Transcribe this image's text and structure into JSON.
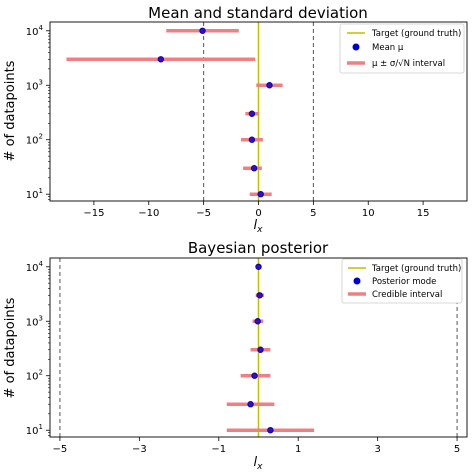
{
  "chart_data": [
    {
      "type": "scatter",
      "title": "Mean and standard deviation",
      "xlabel": "l_x",
      "ylabel": "# of datapoints",
      "xlim": [
        -19,
        19
      ],
      "ylim": [
        7.5,
        14500
      ],
      "xscale": "linear",
      "yscale": "log",
      "xticks": [
        -15,
        -10,
        -5,
        0,
        5,
        10,
        15
      ],
      "xtick_labels": [
        "−15",
        "−10",
        "−5",
        "0",
        "5",
        "10",
        "15"
      ],
      "yticks": [
        10,
        100,
        1000,
        10000
      ],
      "target_x": 0,
      "dashed_x": [
        -5,
        5
      ],
      "points": [
        {
          "n": 10,
          "mean": 0.2,
          "lo": -0.8,
          "hi": 1.2
        },
        {
          "n": 30,
          "mean": -0.4,
          "lo": -1.4,
          "hi": 0.3
        },
        {
          "n": 100,
          "mean": -0.6,
          "lo": -1.6,
          "hi": 0.4
        },
        {
          "n": 300,
          "mean": -0.6,
          "lo": -1.2,
          "hi": 0.0
        },
        {
          "n": 1000,
          "mean": 1.0,
          "lo": -0.2,
          "hi": 2.2
        },
        {
          "n": 3000,
          "mean": -8.9,
          "lo": -17.5,
          "hi": -0.3
        },
        {
          "n": 10000,
          "mean": -5.1,
          "lo": -8.4,
          "hi": -1.8
        }
      ],
      "legend": {
        "placement": "top-right",
        "entries": [
          "Target (ground truth)",
          "Mean μ",
          "μ ± σ/√N interval"
        ]
      },
      "colors": {
        "target": "#bfbf00",
        "point": "#0000cc",
        "interval": "#f08080",
        "dashed": "#555555"
      }
    },
    {
      "type": "scatter",
      "title": "Bayesian posterior",
      "xlabel": "l_x",
      "ylabel": "# of datapoints",
      "xlim": [
        -5.25,
        5.25
      ],
      "ylim": [
        7.5,
        14500
      ],
      "xscale": "linear",
      "yscale": "log",
      "xticks": [
        -5,
        -3,
        -1,
        1,
        3,
        5
      ],
      "xtick_labels": [
        "−5",
        "−3",
        "−1",
        "1",
        "3",
        "5"
      ],
      "yticks": [
        10,
        100,
        1000,
        10000
      ],
      "target_x": 0,
      "dashed_x": [
        -5,
        5
      ],
      "points": [
        {
          "n": 10,
          "mean": 0.3,
          "lo": -0.8,
          "hi": 1.4
        },
        {
          "n": 30,
          "mean": -0.2,
          "lo": -0.8,
          "hi": 0.4
        },
        {
          "n": 100,
          "mean": -0.1,
          "lo": -0.45,
          "hi": 0.3
        },
        {
          "n": 300,
          "mean": 0.05,
          "lo": -0.2,
          "hi": 0.3
        },
        {
          "n": 1000,
          "mean": -0.02,
          "lo": -0.15,
          "hi": 0.12
        },
        {
          "n": 3000,
          "mean": 0.03,
          "lo": -0.07,
          "hi": 0.14
        },
        {
          "n": 10000,
          "mean": 0.0,
          "lo": -0.07,
          "hi": 0.07
        }
      ],
      "legend": {
        "placement": "top-right",
        "entries": [
          "Target (ground truth)",
          "Posterior mode",
          "Credible interval"
        ]
      },
      "colors": {
        "target": "#bfbf00",
        "point": "#0000cc",
        "interval": "#f08080",
        "dashed": "#555555"
      }
    }
  ]
}
